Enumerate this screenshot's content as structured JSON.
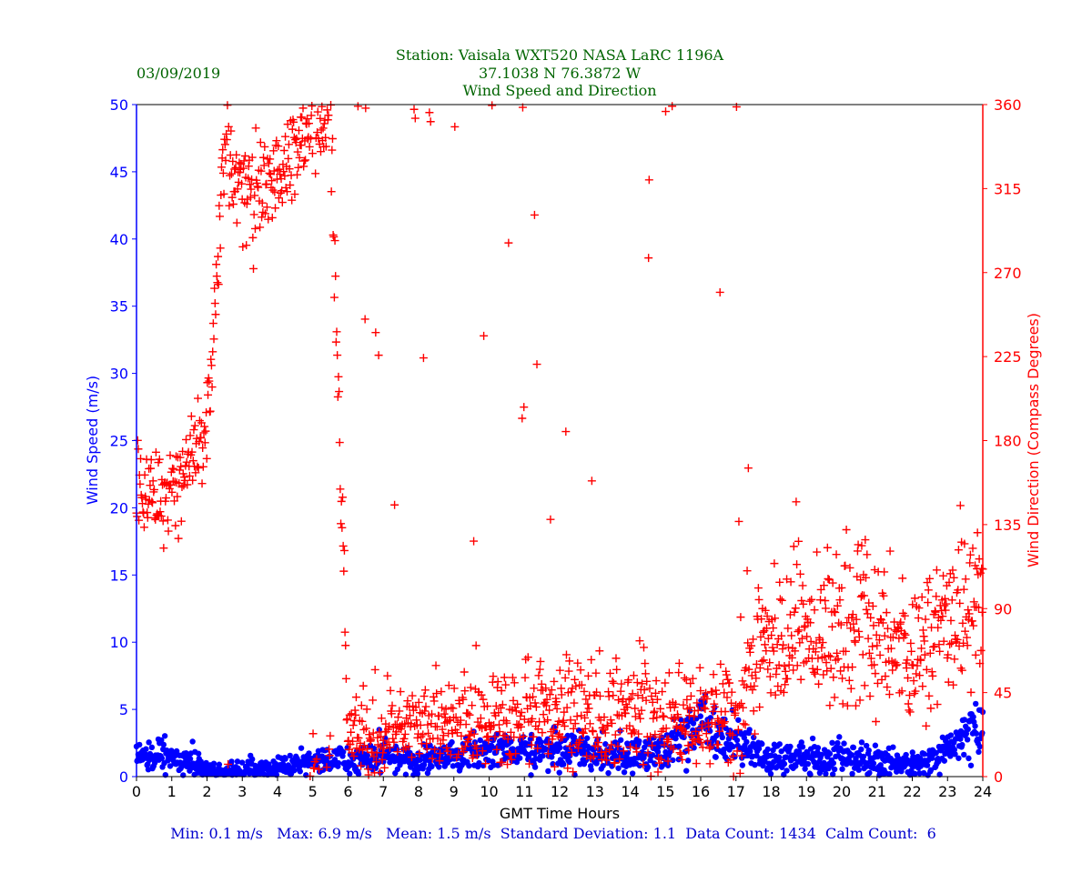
{
  "header": {
    "date": "03/09/2019",
    "station_line": "Station:  Vaisala WXT520  NASA LaRC 1196A",
    "coords_line": "37.1038 N 76.3872 W",
    "title_line": "Wind Speed and Direction"
  },
  "footer": {
    "stats": "Min: 0.1 m/s   Max: 6.9 m/s   Mean: 1.5 m/s  Standard Deviation: 1.1  Data Count: 1434  Calm Count:  6"
  },
  "colors": {
    "speed": "#0000ff",
    "direction": "#ff0000",
    "header_text": "#006400",
    "footer_text": "#0000cd",
    "axis": "#000000"
  },
  "chart_data": {
    "type": "scatter",
    "xlabel": "GMT Time Hours",
    "ylabel_left": "Wind Speed (m/s)",
    "ylabel_right": "Wind Direction (Compass Degrees)",
    "xlim": [
      0,
      24
    ],
    "ylim_left": [
      0,
      50
    ],
    "ylim_right": [
      0,
      360
    ],
    "x_ticks": [
      0,
      1,
      2,
      3,
      4,
      5,
      6,
      7,
      8,
      9,
      10,
      11,
      12,
      13,
      14,
      15,
      16,
      17,
      18,
      19,
      20,
      21,
      22,
      23,
      24
    ],
    "y_ticks_left": [
      0,
      5,
      10,
      15,
      20,
      25,
      30,
      35,
      40,
      45,
      50
    ],
    "y_ticks_right": [
      0,
      45,
      90,
      135,
      180,
      225,
      270,
      315,
      360
    ],
    "grid": false,
    "series": [
      {
        "marker": "circle",
        "axis": "left",
        "color": "#0000ff",
        "profile_hours": [
          0,
          1,
          1.5,
          2,
          2.5,
          3,
          4,
          5,
          6,
          7,
          8,
          9,
          10,
          11,
          12,
          13,
          14,
          15,
          15.5,
          16,
          16.5,
          17,
          18,
          19,
          20,
          21,
          22,
          22.5,
          23,
          23.5,
          24
        ],
        "profile_speed_ms": [
          1.4,
          1.5,
          1.3,
          0.4,
          0.2,
          0.5,
          0.6,
          1.2,
          1.1,
          1.6,
          1.0,
          1.4,
          2.0,
          2.0,
          2.1,
          1.7,
          1.5,
          2.0,
          3.2,
          3.9,
          3.2,
          2.5,
          1.5,
          1.3,
          1.4,
          1.1,
          0.9,
          1.1,
          1.8,
          2.9,
          3.6
        ]
      },
      {
        "marker": "plus",
        "axis": "right",
        "color": "#ff0000",
        "profile_hours": [
          0,
          1,
          1.5,
          2,
          2.5,
          3,
          3.5,
          4,
          4.5,
          5,
          5.5,
          6,
          7,
          8,
          9,
          10,
          11,
          12,
          13,
          14,
          15,
          16,
          17,
          18,
          19,
          20,
          21,
          22,
          23,
          24
        ],
        "profile_direction_deg": [
          155,
          152,
          170,
          185,
          340,
          310,
          315,
          320,
          335,
          350,
          358,
          22,
          25,
          30,
          30,
          30,
          35,
          38,
          32,
          36,
          28,
          30,
          35,
          70,
          80,
          85,
          80,
          65,
          85,
          100
        ]
      }
    ]
  }
}
